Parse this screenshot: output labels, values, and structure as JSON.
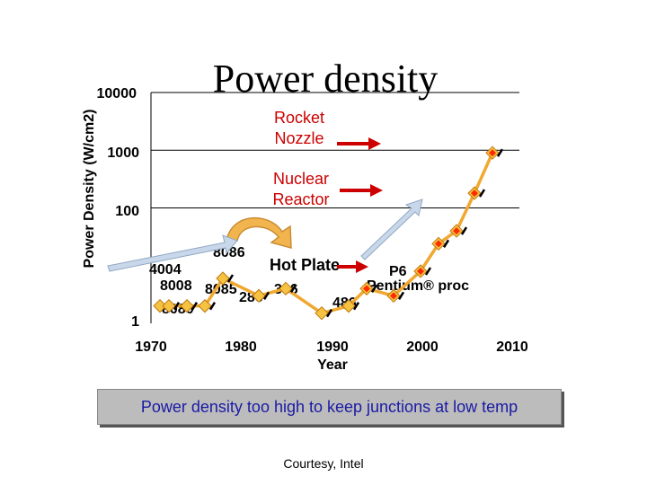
{
  "slide": {
    "title": "Power density",
    "banner": "Power density too high to keep junctions at low temp",
    "courtesy": "Courtesy, Intel"
  },
  "colors": {
    "line": "#f0a830",
    "marker_early": "#f5c242",
    "marker_late": "#ff2a00",
    "annotation": "#cc0000",
    "banner_text": "#1a1aa6",
    "banner_bg": "#bcbcbc",
    "arrow_fill": "#c8d8ea"
  },
  "chart_data": {
    "type": "line",
    "title": "Power density",
    "ylabel": "Power Density (W/cm2)",
    "xlabel": "Year",
    "yscale": "log",
    "ylim": [
      1,
      10000
    ],
    "xlim": [
      1970,
      2010
    ],
    "y_ticks": [
      "10000",
      "1000",
      "100",
      "1"
    ],
    "x_ticks": [
      "1970",
      "1980",
      "1990",
      "2000",
      "2010"
    ],
    "x_axis_title": "Year",
    "grid": true,
    "series": [
      {
        "points": [
          {
            "x": 1971,
            "y": 2
          },
          {
            "x": 1972,
            "y": 2
          },
          {
            "x": 1974,
            "y": 2
          },
          {
            "x": 1976,
            "y": 2
          },
          {
            "x": 1978,
            "y": 6
          },
          {
            "x": 1982,
            "y": 3
          },
          {
            "x": 1985,
            "y": 4
          },
          {
            "x": 1989,
            "y": 1.5
          },
          {
            "x": 1992,
            "y": 2
          },
          {
            "x": 1994,
            "y": 4
          },
          {
            "x": 1997,
            "y": 3
          },
          {
            "x": 2000,
            "y": 8
          },
          {
            "x": 2002,
            "y": 24
          },
          {
            "x": 2004,
            "y": 40
          },
          {
            "x": 2006,
            "y": 180
          },
          {
            "x": 2008,
            "y": 900
          }
        ],
        "marker_split_index": 9
      }
    ],
    "processor_labels": [
      "4004",
      "8008",
      "8080",
      "8085",
      "8086",
      "286",
      "386",
      "486",
      "P6",
      "Pentium® proc"
    ],
    "reference_lines": [
      {
        "label": "Nuclear Reactor",
        "y": 100
      },
      {
        "label": "Rocket Nozzle",
        "y": 1000
      }
    ],
    "annotations": [
      "Hot Plate",
      "Nuclear Reactor",
      "Rocket Nozzle"
    ]
  }
}
